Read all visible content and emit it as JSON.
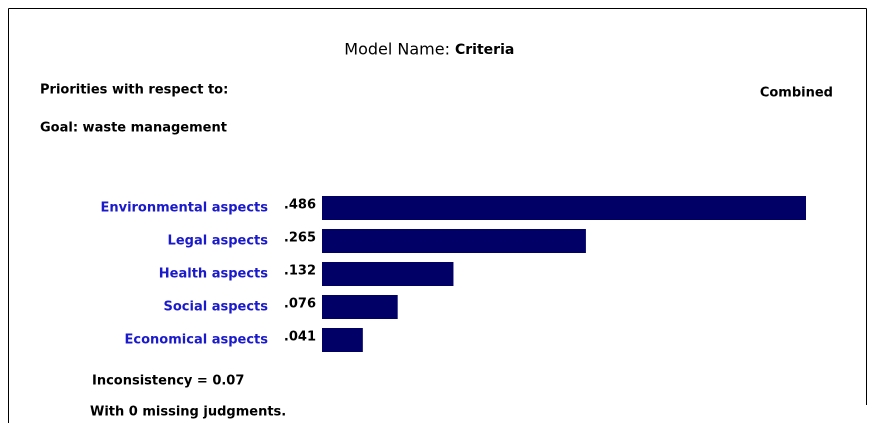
{
  "chart_data": {
    "type": "bar",
    "orientation": "horizontal",
    "model_label": "Model Name:",
    "model_name": "Criteria",
    "priorities_label": "Priorities with respect to:",
    "goal": "Goal: waste management",
    "mode": "Combined",
    "categories": [
      "Environmental aspects",
      "Legal aspects",
      "Health aspects",
      "Social aspects",
      "Economical aspects"
    ],
    "values": [
      0.486,
      0.265,
      0.132,
      0.076,
      0.041
    ],
    "value_labels": [
      ".486",
      ".265",
      ".132",
      ".076",
      ".041"
    ],
    "color": "#000066",
    "label_color": "#1a1acc",
    "inconsistency": "Inconsistency = 0.07",
    "missing": "With 0 missing judgments."
  }
}
